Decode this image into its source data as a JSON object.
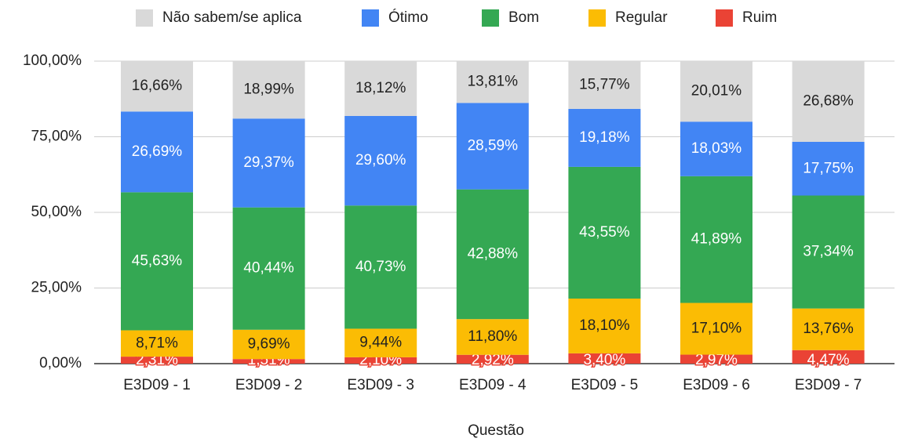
{
  "chart_data": {
    "type": "stacked_bar",
    "x_label": "Questão",
    "categories": [
      "E3D09 - 1",
      "E3D09 - 2",
      "E3D09 - 3",
      "E3D09 - 4",
      "E3D09 - 5",
      "E3D09 - 6",
      "E3D09 - 7"
    ],
    "series": [
      {
        "name": "Não sabem/se aplica",
        "color": "#d9d9d9",
        "values": [
          16.66,
          18.99,
          18.12,
          13.81,
          15.77,
          20.01,
          26.68
        ],
        "value_labels": [
          "16,66%",
          "18,99%",
          "18,12%",
          "13,81%",
          "15,77%",
          "20,01%",
          "26,68%"
        ]
      },
      {
        "name": "Ótimo",
        "color": "#4285f4",
        "values": [
          26.69,
          29.37,
          29.6,
          28.59,
          19.18,
          18.03,
          17.75
        ],
        "value_labels": [
          "26,69%",
          "29,37%",
          "29,60%",
          "28,59%",
          "19,18%",
          "18,03%",
          "17,75%"
        ]
      },
      {
        "name": "Bom",
        "color": "#34a853",
        "values": [
          45.63,
          40.44,
          40.73,
          42.88,
          43.55,
          41.89,
          37.34
        ],
        "value_labels": [
          "45,63%",
          "40,44%",
          "40,73%",
          "42,88%",
          "43,55%",
          "41,89%",
          "37,34%"
        ]
      },
      {
        "name": "Regular",
        "color": "#fbbc04",
        "values": [
          8.71,
          9.69,
          9.44,
          11.8,
          18.1,
          17.1,
          13.76
        ],
        "value_labels": [
          "8,71%",
          "9,69%",
          "9,44%",
          "11,80%",
          "18,10%",
          "17,10%",
          "13,76%"
        ]
      },
      {
        "name": "Ruim",
        "color": "#ea4335",
        "values": [
          2.31,
          1.51,
          2.1,
          2.92,
          3.4,
          2.97,
          4.47
        ],
        "value_labels": [
          "2,31%",
          "1,51%",
          "2,10%",
          "2,92%",
          "3,40%",
          "2,97%",
          "4,47%"
        ]
      }
    ],
    "ylim": [
      0,
      100
    ],
    "yticks": [
      {
        "value": 0,
        "label": "0,00%"
      },
      {
        "value": 25,
        "label": "25,00%"
      },
      {
        "value": 50,
        "label": "50,00%"
      },
      {
        "value": 75,
        "label": "75,00%"
      },
      {
        "value": 100,
        "label": "100,00%"
      }
    ],
    "grid": true,
    "legend": "top"
  }
}
